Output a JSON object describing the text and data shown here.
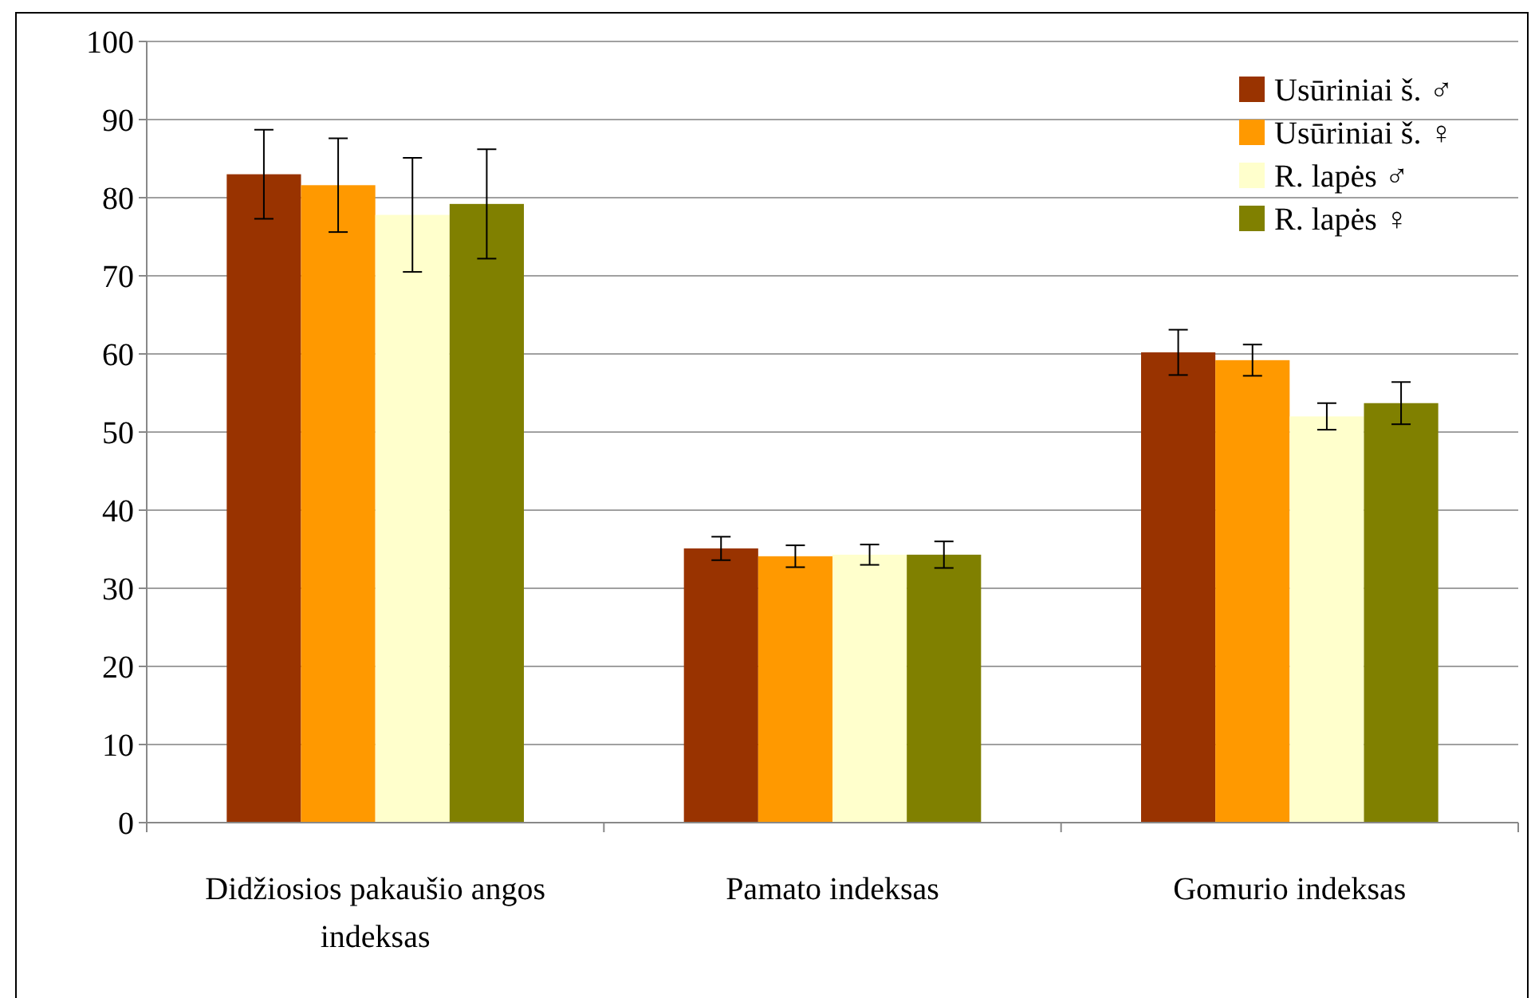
{
  "chart_data": {
    "type": "bar",
    "categories": [
      "Didžiosios pakaušio angos indeksas",
      "Pamato indeksas",
      "Gomurio indeksas"
    ],
    "series": [
      {
        "name": "Usūriniai š. ♂",
        "color": "#993300",
        "values": [
          83,
          35.1,
          60.2
        ],
        "errors": [
          5.7,
          1.5,
          2.9
        ]
      },
      {
        "name": "Usūriniai š. ♀",
        "color": "#ff9900",
        "values": [
          81.6,
          34.1,
          59.2
        ],
        "errors": [
          6,
          1.4,
          2
        ]
      },
      {
        "name": "R. lapės ♂",
        "color": "#ffffcc",
        "values": [
          77.8,
          34.3,
          52
        ],
        "errors": [
          7.3,
          1.3,
          1.7
        ]
      },
      {
        "name": "R. lapės ♀",
        "color": "#808000",
        "values": [
          79.2,
          34.3,
          53.7
        ],
        "errors": [
          7,
          1.7,
          2.7
        ]
      }
    ],
    "ylim": [
      0,
      100
    ],
    "yticks": [
      0,
      10,
      20,
      30,
      40,
      50,
      60,
      70,
      80,
      90,
      100
    ],
    "grid": "y",
    "legend": "top right"
  }
}
